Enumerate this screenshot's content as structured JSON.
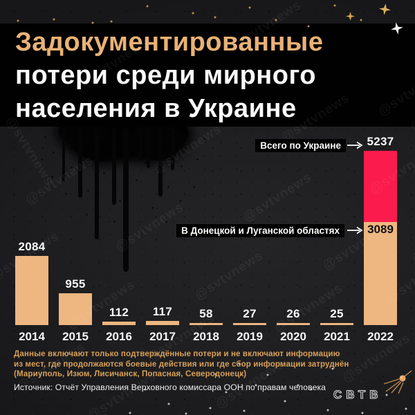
{
  "title": {
    "line1": "Задокументированные",
    "line2": "потери среди мирного",
    "line3": "населения в Украине"
  },
  "chart_data": {
    "type": "bar",
    "title": "Задокументированные потери среди мирного населения в Украине",
    "categories": [
      "2014",
      "2015",
      "2016",
      "2017",
      "2018",
      "2019",
      "2020",
      "2021",
      "2022"
    ],
    "values": [
      2084,
      955,
      112,
      117,
      58,
      27,
      26,
      25,
      5237
    ],
    "bars": [
      {
        "year": "2014",
        "value": 2084
      },
      {
        "year": "2015",
        "value": 955
      },
      {
        "year": "2016",
        "value": 112
      },
      {
        "year": "2017",
        "value": 117
      },
      {
        "year": "2018",
        "value": 58
      },
      {
        "year": "2019",
        "value": 27
      },
      {
        "year": "2020",
        "value": 26
      },
      {
        "year": "2021",
        "value": 25
      },
      {
        "year": "2022",
        "value": 5237,
        "total": 5237,
        "donbas": 3089,
        "rest": 2148
      }
    ],
    "annotations": [
      {
        "label": "Всего по Украине",
        "value": 5237
      },
      {
        "label": "В Донецкой и Луганской областях",
        "value": 3089
      }
    ],
    "colors": {
      "bar": "#eeb680",
      "highlight_2022_top": "#fb1b4d",
      "background": "#1e1e20",
      "title_accent": "#e9b276"
    },
    "ylim": [
      0,
      5237
    ],
    "grid": false,
    "value_labels": true,
    "legend": "none"
  },
  "footnote": {
    "lines": [
      "Данные включают только подтверждённые потери и не включают информацию",
      "из мест, где продолжаются боевые действия или где сбор информации затруднён",
      "(Мариуполь, Изюм, Лисичанск, Попасная, Северодонецк)"
    ]
  },
  "source": "Источник: Отчёт Управления Верховного комиссара ООН по правам человека",
  "watermark": {
    "text": "@svtvnews"
  },
  "logo": {
    "text": "СВТВ"
  }
}
